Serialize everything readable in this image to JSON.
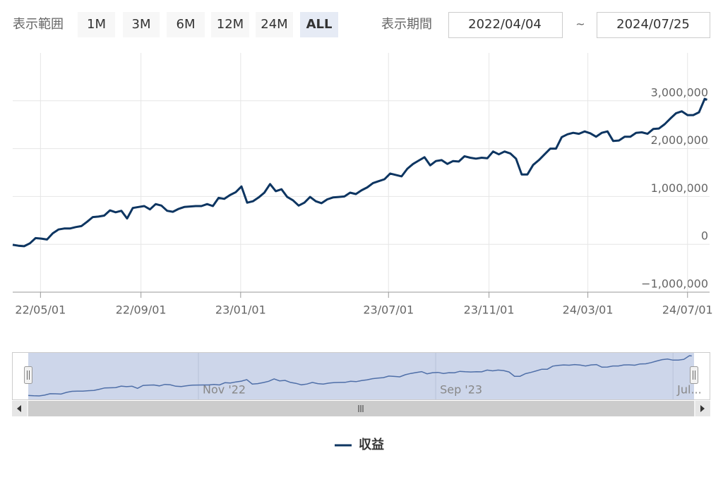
{
  "chart_data": {
    "type": "line",
    "range_selector": {
      "label": "表示範囲",
      "buttons": [
        "1M",
        "3M",
        "6M",
        "12M",
        "24M",
        "ALL"
      ],
      "selected": 5
    },
    "date_range": {
      "label": "表示期間",
      "from": "2022/04/04",
      "separator": "~",
      "to": "2024/07/25"
    },
    "x": [
      "2022-03-28",
      "2022-04-04",
      "2022-04-11",
      "2022-04-18",
      "2022-04-25",
      "2022-05-02",
      "2022-05-09",
      "2022-05-16",
      "2022-05-23",
      "2022-05-30",
      "2022-06-06",
      "2022-06-13",
      "2022-06-20",
      "2022-06-27",
      "2022-07-04",
      "2022-07-11",
      "2022-07-18",
      "2022-07-25",
      "2022-08-01",
      "2022-08-08",
      "2022-08-15",
      "2022-08-22",
      "2022-08-29",
      "2022-09-05",
      "2022-09-12",
      "2022-09-19",
      "2022-09-26",
      "2022-10-03",
      "2022-10-10",
      "2022-10-17",
      "2022-10-24",
      "2022-10-31",
      "2022-11-07",
      "2022-11-14",
      "2022-11-21",
      "2022-11-28",
      "2022-12-05",
      "2022-12-12",
      "2022-12-19",
      "2022-12-26",
      "2023-01-02",
      "2023-01-09",
      "2023-01-16",
      "2023-01-23",
      "2023-01-30",
      "2023-02-06",
      "2023-02-13",
      "2023-02-20",
      "2023-02-27",
      "2023-03-06",
      "2023-03-13",
      "2023-03-20",
      "2023-03-27",
      "2023-04-03",
      "2023-04-10",
      "2023-04-17",
      "2023-04-24",
      "2023-05-01",
      "2023-05-08",
      "2023-05-15",
      "2023-05-22",
      "2023-05-29",
      "2023-06-05",
      "2023-06-12",
      "2023-06-19",
      "2023-06-26",
      "2023-07-03",
      "2023-07-10",
      "2023-07-17",
      "2023-07-24",
      "2023-07-31",
      "2023-08-07",
      "2023-08-14",
      "2023-08-21",
      "2023-08-28",
      "2023-09-04",
      "2023-09-11",
      "2023-09-18",
      "2023-09-25",
      "2023-10-02",
      "2023-10-09",
      "2023-10-16",
      "2023-10-23",
      "2023-10-30",
      "2023-11-06",
      "2023-11-13",
      "2023-11-20",
      "2023-11-27",
      "2023-12-04",
      "2023-12-11",
      "2023-12-18",
      "2023-12-25",
      "2024-01-01",
      "2024-01-08",
      "2024-01-15",
      "2024-01-22",
      "2024-01-29",
      "2024-02-05",
      "2024-02-12",
      "2024-02-19",
      "2024-02-26",
      "2024-03-04",
      "2024-03-11",
      "2024-03-18",
      "2024-03-25",
      "2024-04-01",
      "2024-04-08",
      "2024-04-15",
      "2024-04-22",
      "2024-04-29",
      "2024-05-06",
      "2024-05-13",
      "2024-05-20",
      "2024-05-27",
      "2024-06-03",
      "2024-06-10",
      "2024-06-17",
      "2024-06-24",
      "2024-07-01",
      "2024-07-08",
      "2024-07-15",
      "2024-07-22",
      "2024-07-25"
    ],
    "series": [
      {
        "name": "収益",
        "color": "#0d3561",
        "values": [
          -10000,
          -30000,
          -40000,
          20000,
          130000,
          120000,
          100000,
          230000,
          310000,
          330000,
          330000,
          360000,
          380000,
          470000,
          570000,
          580000,
          600000,
          710000,
          670000,
          700000,
          540000,
          760000,
          780000,
          800000,
          730000,
          840000,
          810000,
          700000,
          680000,
          740000,
          780000,
          790000,
          800000,
          800000,
          840000,
          800000,
          970000,
          950000,
          1030000,
          1090000,
          1210000,
          870000,
          900000,
          980000,
          1080000,
          1260000,
          1110000,
          1150000,
          990000,
          920000,
          810000,
          870000,
          990000,
          900000,
          860000,
          940000,
          980000,
          990000,
          1000000,
          1080000,
          1050000,
          1130000,
          1190000,
          1280000,
          1320000,
          1360000,
          1480000,
          1450000,
          1420000,
          1580000,
          1680000,
          1750000,
          1820000,
          1650000,
          1740000,
          1760000,
          1680000,
          1740000,
          1730000,
          1840000,
          1810000,
          1790000,
          1810000,
          1800000,
          1940000,
          1880000,
          1940000,
          1900000,
          1790000,
          1460000,
          1460000,
          1660000,
          1760000,
          1880000,
          2000000,
          2000000,
          2240000,
          2300000,
          2330000,
          2310000,
          2360000,
          2320000,
          2250000,
          2330000,
          2360000,
          2160000,
          2170000,
          2250000,
          2250000,
          2330000,
          2340000,
          2310000,
          2410000,
          2420000,
          2510000,
          2630000,
          2740000,
          2780000,
          2700000,
          2700000,
          2760000,
          3040000,
          3020000
        ]
      }
    ],
    "xlim": [
      "2022-03-28",
      "2024-07-28"
    ],
    "xticks": [
      {
        "value": "2022-05-01",
        "label": "22/05/01"
      },
      {
        "value": "2022-09-01",
        "label": "22/09/01"
      },
      {
        "value": "2023-01-01",
        "label": "23/01/01"
      },
      {
        "value": "2023-07-01",
        "label": "23/07/01"
      },
      {
        "value": "2023-11-01",
        "label": "23/11/01"
      },
      {
        "value": "2024-03-01",
        "label": "24/03/01"
      },
      {
        "value": "2024-07-01",
        "label": "24/07/01"
      }
    ],
    "ylim": [
      -1000000,
      4000000
    ],
    "yticks": [
      {
        "value": -1000000,
        "label": "−1,000,000"
      },
      0,
      {
        "value": 1000000,
        "label": "1,000,000"
      },
      {
        "value": 2000000,
        "label": "2,000,000"
      },
      {
        "value": 3000000,
        "label": "3,000,000"
      }
    ],
    "grid": true,
    "navigator": {
      "xticks": [
        {
          "value": "2022-11-01",
          "label": "Nov '22"
        },
        {
          "value": "2023-09-01",
          "label": "Sep '23"
        },
        {
          "value": "2024-07-01",
          "label": "Jul..."
        }
      ]
    }
  }
}
